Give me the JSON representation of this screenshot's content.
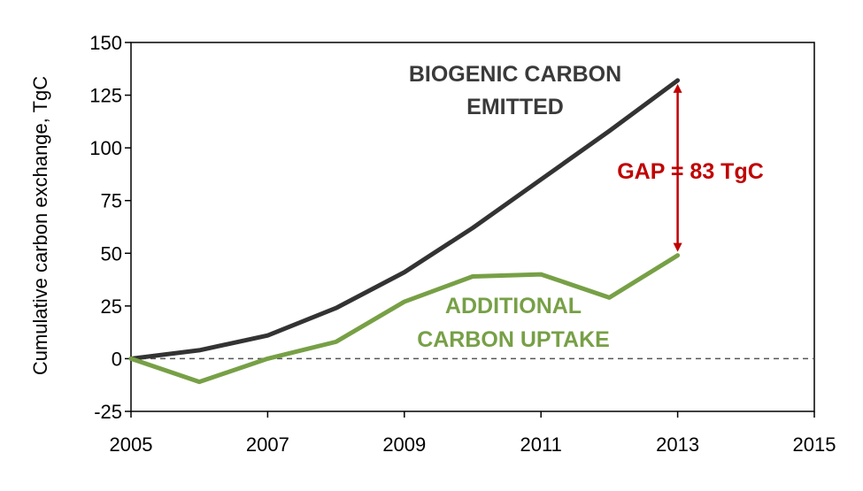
{
  "chart_data": {
    "type": "line",
    "title": "",
    "xlabel": "",
    "ylabel": "Cumulative carbon exchange, TgC",
    "xlim": [
      2005,
      2015
    ],
    "ylim": [
      -25,
      150
    ],
    "xticks": [
      "2005",
      "2007",
      "2009",
      "2011",
      "2013",
      "2015"
    ],
    "yticks": [
      "-25",
      "0",
      "25",
      "50",
      "75",
      "100",
      "125",
      "150"
    ],
    "reference_line": {
      "y": 0,
      "style": "dashed"
    },
    "series": [
      {
        "name": "BIOGENIC CARBON EMITTED",
        "color": "#333333",
        "x": [
          2005,
          2006,
          2007,
          2008,
          2009,
          2010,
          2011,
          2012,
          2013
        ],
        "values": [
          0,
          4,
          11,
          24,
          41,
          62,
          85,
          108,
          132
        ]
      },
      {
        "name": "ADDITIONAL CARBON UPTAKE",
        "color": "#77a046",
        "x": [
          2005,
          2006,
          2007,
          2008,
          2009,
          2010,
          2011,
          2012,
          2013
        ],
        "values": [
          0,
          -11,
          0,
          8,
          27,
          39,
          40,
          29,
          49
        ]
      }
    ],
    "annotations": {
      "emitted_line1": "BIOGENIC CARBON",
      "emitted_line2": "EMITTED",
      "uptake_line1": "ADDITIONAL",
      "uptake_line2": "CARBON UPTAKE",
      "gap_label": "GAP = 83 TgC",
      "gap": {
        "x": 2013,
        "from": 132,
        "to": 49,
        "color": "#c00000"
      }
    }
  }
}
